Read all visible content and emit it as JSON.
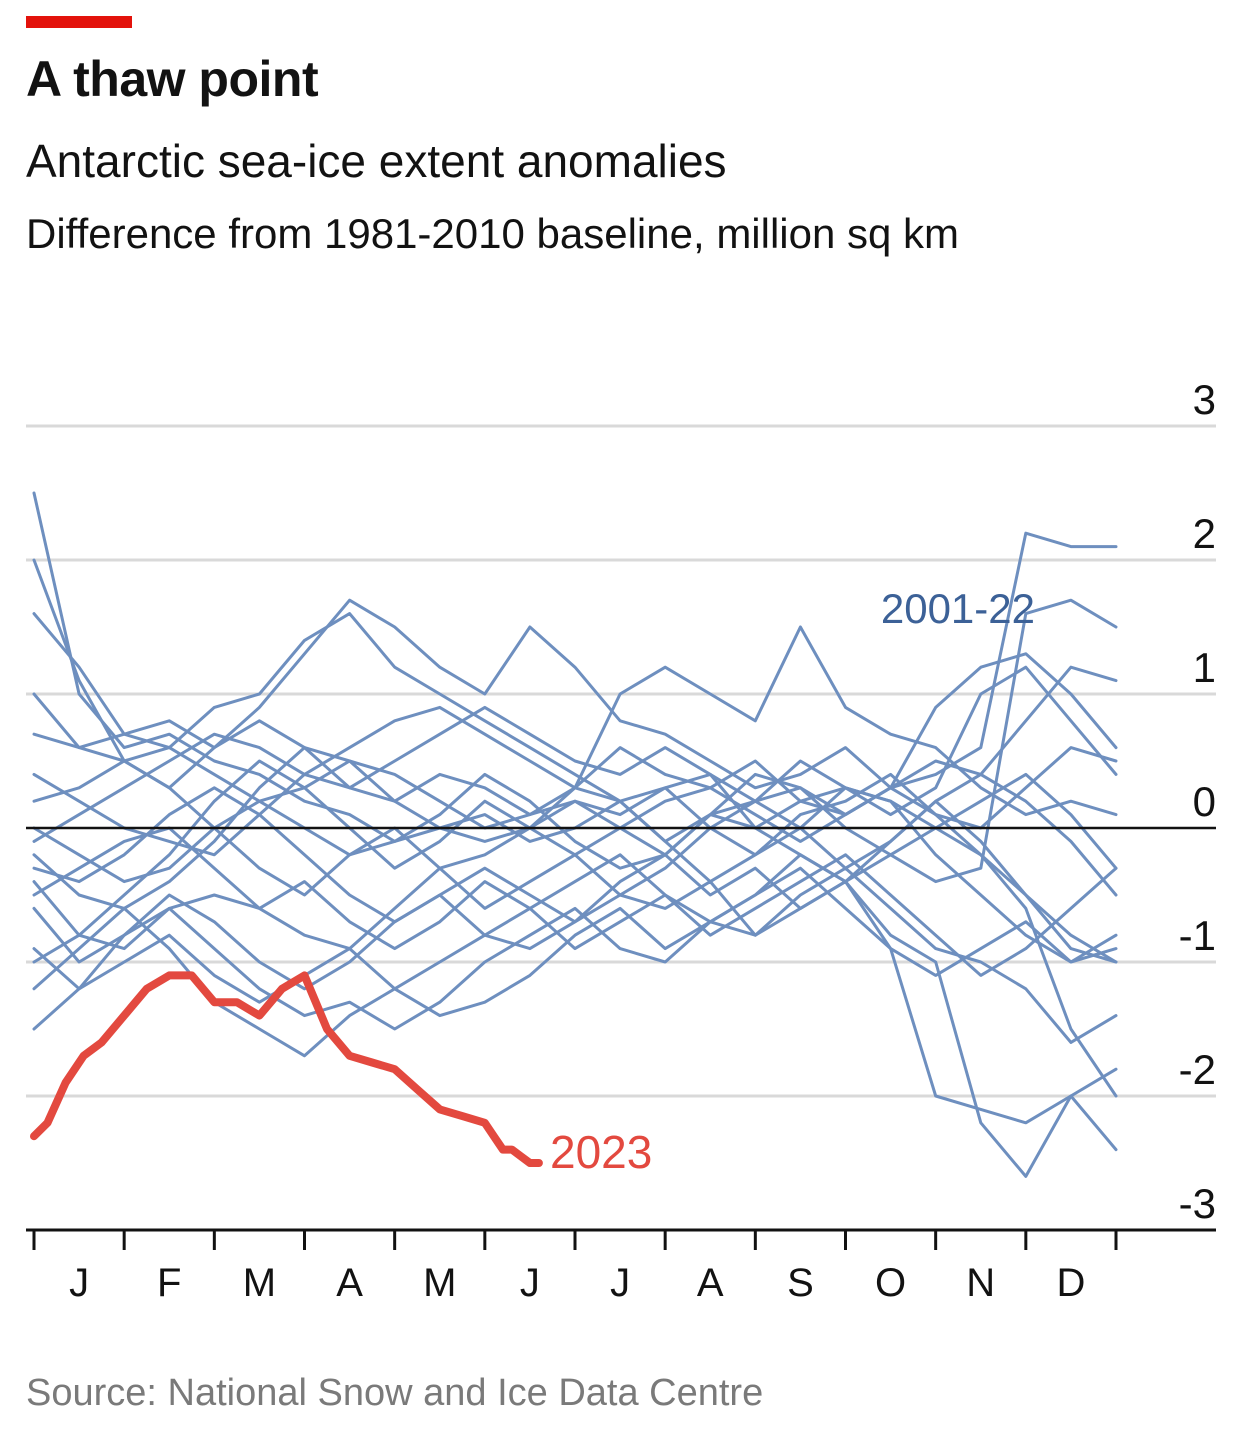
{
  "header": {
    "title": "A thaw point",
    "subtitle": "Antarctic sea-ice extent anomalies",
    "unit": "Difference from 1981-2010 baseline, million sq km"
  },
  "footer": {
    "source": "Source: National Snow and Ice Data Centre"
  },
  "colors": {
    "accent": "#e3120b",
    "series_2023": "#e3493f",
    "series_history": "#6e8fbf",
    "history_label": "#3c6197",
    "grid": "#d9d9d9",
    "zero_line": "#121212"
  },
  "chart_data": {
    "type": "line",
    "x_unit": "month",
    "xlim": [
      0,
      12
    ],
    "ylim": [
      -3,
      3
    ],
    "y_ticks": [
      "3",
      "2",
      "1",
      "0",
      "-1",
      "-2",
      "-3"
    ],
    "x_ticks": [
      "J",
      "F",
      "M",
      "A",
      "M",
      "J",
      "J",
      "A",
      "S",
      "O",
      "N",
      "D"
    ],
    "grid": true,
    "series": [
      {
        "name": "2023",
        "highlight": true,
        "x": [
          0,
          0.15,
          0.35,
          0.55,
          0.75,
          1.0,
          1.25,
          1.5,
          1.75,
          2.0,
          2.25,
          2.5,
          2.75,
          3.0,
          3.25,
          3.5,
          3.75,
          4.0,
          4.25,
          4.5,
          4.75,
          5.0,
          5.1,
          5.2,
          5.3,
          5.4,
          5.5,
          5.55,
          5.6
        ],
        "y": [
          -2.3,
          -2.2,
          -1.9,
          -1.7,
          -1.6,
          -1.4,
          -1.2,
          -1.1,
          -1.1,
          -1.3,
          -1.3,
          -1.4,
          -1.2,
          -1.1,
          -1.5,
          -1.7,
          -1.75,
          -1.8,
          -1.95,
          -2.1,
          -2.15,
          -2.2,
          -2.3,
          -2.4,
          -2.4,
          -2.45,
          -2.5,
          -2.5,
          -2.5
        ]
      }
    ],
    "history": {
      "name": "2001-22",
      "x": [
        0,
        0.5,
        1,
        1.5,
        2,
        2.5,
        3,
        3.5,
        4,
        4.5,
        5,
        5.5,
        6,
        6.5,
        7,
        7.5,
        8,
        8.5,
        9,
        9.5,
        10,
        10.5,
        11,
        11.5,
        12
      ],
      "lines": [
        [
          2.5,
          1.0,
          0.6,
          0.7,
          0.5,
          0.4,
          0.2,
          0.1,
          -0.1,
          0.0,
          0.1,
          -0.1,
          0.0,
          0.2,
          -0.1,
          0.1,
          0.0,
          0.2,
          0.3,
          0.2,
          0.0,
          -0.2,
          -0.5,
          -0.8,
          -1.0
        ],
        [
          2.0,
          1.1,
          0.5,
          0.3,
          0.6,
          0.8,
          0.6,
          0.3,
          0.2,
          0.4,
          0.3,
          0.1,
          0.2,
          0.0,
          -0.2,
          0.1,
          0.2,
          0.3,
          0.1,
          0.3,
          0.5,
          0.4,
          0.8,
          1.2,
          1.1
        ],
        [
          1.6,
          1.2,
          0.7,
          0.6,
          0.9,
          1.0,
          1.4,
          1.6,
          1.2,
          1.0,
          0.8,
          0.6,
          0.4,
          0.2,
          0.3,
          0.0,
          -0.2,
          0.1,
          0.2,
          0.4,
          0.1,
          0.0,
          0.3,
          0.6,
          0.5
        ],
        [
          1.0,
          0.6,
          0.7,
          0.8,
          0.6,
          0.9,
          1.3,
          1.7,
          1.5,
          1.2,
          1.0,
          1.5,
          1.2,
          0.8,
          0.7,
          0.5,
          0.3,
          0.4,
          0.6,
          0.3,
          0.9,
          1.2,
          1.3,
          1.0,
          0.6
        ],
        [
          0.7,
          0.6,
          0.5,
          0.6,
          0.4,
          0.2,
          0.3,
          0.5,
          0.4,
          0.2,
          0.0,
          0.1,
          0.3,
          1.0,
          1.2,
          1.0,
          0.8,
          1.5,
          0.9,
          0.7,
          0.6,
          0.3,
          0.1,
          0.2,
          0.1
        ],
        [
          0.4,
          0.2,
          0.0,
          -0.1,
          -0.2,
          0.1,
          0.4,
          0.6,
          0.8,
          0.9,
          0.7,
          0.5,
          0.3,
          0.6,
          0.4,
          0.3,
          0.5,
          0.2,
          0.1,
          0.3,
          0.4,
          0.6,
          2.2,
          2.1,
          2.1
        ],
        [
          0.0,
          -0.2,
          -0.4,
          -0.3,
          0.0,
          0.2,
          0.0,
          -0.2,
          -0.1,
          0.1,
          0.4,
          0.2,
          -0.1,
          -0.3,
          -0.2,
          0.1,
          0.4,
          0.3,
          0.0,
          -0.2,
          -0.4,
          -0.3,
          1.6,
          1.7,
          1.5
        ],
        [
          -0.2,
          -0.5,
          -0.6,
          -0.4,
          -0.1,
          0.3,
          0.6,
          0.5,
          0.2,
          0.0,
          -0.1,
          0.0,
          0.2,
          0.1,
          0.3,
          0.4,
          0.0,
          -0.2,
          -0.4,
          -0.1,
          0.2,
          0.4,
          0.2,
          -0.1,
          -0.5
        ],
        [
          -0.4,
          -0.8,
          -0.9,
          -0.6,
          -0.5,
          -0.6,
          -0.8,
          -0.9,
          -0.6,
          -0.3,
          -0.2,
          0.0,
          0.3,
          0.2,
          -0.1,
          -0.4,
          -0.2,
          0.0,
          0.3,
          0.2,
          -0.2,
          -0.5,
          -0.8,
          -1.0,
          -0.9
        ],
        [
          -0.6,
          -1.0,
          -0.8,
          -0.5,
          -0.7,
          -1.0,
          -1.2,
          -1.0,
          -0.7,
          -0.5,
          -0.8,
          -0.6,
          -0.4,
          -0.2,
          -0.5,
          -0.7,
          -0.5,
          -0.3,
          -0.6,
          -0.9,
          -1.1,
          -0.9,
          -0.7,
          -1.0,
          -0.8
        ],
        [
          -0.9,
          -1.2,
          -1.0,
          -0.8,
          -1.1,
          -1.3,
          -1.1,
          -0.9,
          -1.2,
          -1.0,
          -0.8,
          -0.9,
          -0.7,
          -0.5,
          -0.6,
          -0.4,
          -0.8,
          -0.6,
          -0.4,
          -0.9,
          -2.0,
          -2.1,
          -2.2,
          -2.0,
          -1.8
        ],
        [
          -1.2,
          -0.9,
          -0.6,
          -0.9,
          -1.3,
          -1.5,
          -1.7,
          -1.4,
          -1.2,
          -1.4,
          -1.3,
          -1.1,
          -0.8,
          -0.6,
          -0.9,
          -0.7,
          -0.5,
          -0.2,
          -0.4,
          -0.8,
          -1.0,
          -2.2,
          -2.6,
          -2.0,
          -2.4
        ],
        [
          -1.5,
          -1.2,
          -0.8,
          -0.6,
          -0.9,
          -1.2,
          -1.4,
          -1.3,
          -1.5,
          -1.3,
          -1.0,
          -0.8,
          -0.6,
          -0.9,
          -1.0,
          -0.7,
          -0.8,
          -0.5,
          -0.3,
          -0.6,
          -0.9,
          -1.0,
          -1.2,
          -1.6,
          -1.4
        ],
        [
          -0.3,
          -0.4,
          -0.2,
          0.1,
          0.3,
          0.1,
          -0.2,
          -0.5,
          -0.7,
          -0.5,
          -0.3,
          -0.5,
          -0.7,
          -0.4,
          -0.2,
          -0.5,
          -0.3,
          -0.6,
          -0.4,
          -0.2,
          0.0,
          0.2,
          0.4,
          0.1,
          -0.3
        ],
        [
          0.2,
          0.3,
          0.5,
          0.3,
          0.0,
          -0.3,
          -0.5,
          -0.2,
          0.0,
          -0.3,
          -0.6,
          -0.4,
          -0.2,
          -0.5,
          -0.3,
          0.0,
          0.2,
          0.0,
          -0.3,
          -0.1,
          0.2,
          -0.1,
          -0.5,
          -0.9,
          -1.0
        ],
        [
          -1.0,
          -0.8,
          -0.5,
          -0.2,
          0.2,
          0.5,
          0.3,
          0.0,
          -0.3,
          -0.1,
          0.2,
          0.0,
          -0.2,
          0.0,
          0.2,
          0.3,
          0.1,
          -0.1,
          0.1,
          0.3,
          0.1,
          -0.2,
          -0.6,
          -1.5,
          -2.0
        ],
        [
          -0.1,
          0.1,
          0.3,
          0.5,
          0.7,
          0.6,
          0.4,
          0.3,
          0.5,
          0.7,
          0.9,
          0.7,
          0.5,
          0.4,
          0.6,
          0.4,
          0.2,
          0.5,
          0.3,
          0.1,
          0.3,
          1.0,
          1.2,
          0.8,
          0.4
        ],
        [
          -0.5,
          -0.3,
          -0.1,
          0.0,
          -0.3,
          -0.6,
          -0.4,
          -0.7,
          -0.9,
          -0.7,
          -0.4,
          -0.6,
          -0.9,
          -0.7,
          -0.5,
          -0.8,
          -0.6,
          -0.4,
          -0.2,
          -0.5,
          -0.8,
          -1.1,
          -0.9,
          -0.6,
          -0.3
        ]
      ]
    }
  }
}
